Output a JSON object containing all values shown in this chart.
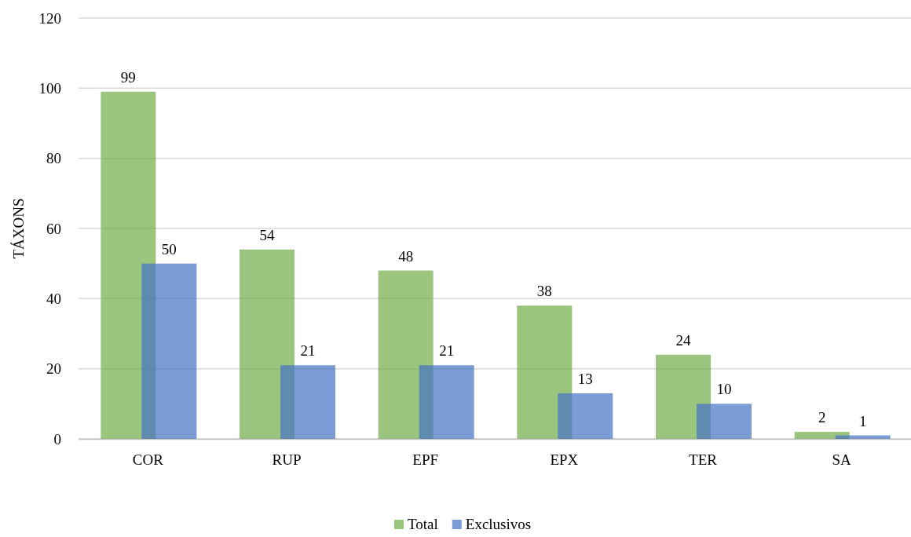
{
  "chart_data": {
    "type": "bar",
    "ylabel": "TÁXONS",
    "categories": [
      "COR",
      "RUP",
      "EPF",
      "EPX",
      "TER",
      "SA"
    ],
    "series": [
      {
        "name": "Total",
        "color": "#70ad47",
        "values": [
          99,
          54,
          48,
          38,
          24,
          2
        ]
      },
      {
        "name": "Exclusivos",
        "color": "#4472c4",
        "values": [
          50,
          21,
          21,
          13,
          10,
          1
        ]
      }
    ],
    "ylim": [
      0,
      120
    ],
    "yticks": [
      0,
      20,
      40,
      60,
      80,
      100,
      120
    ],
    "grid": "y",
    "legend": "bottom",
    "data_labels": true
  }
}
